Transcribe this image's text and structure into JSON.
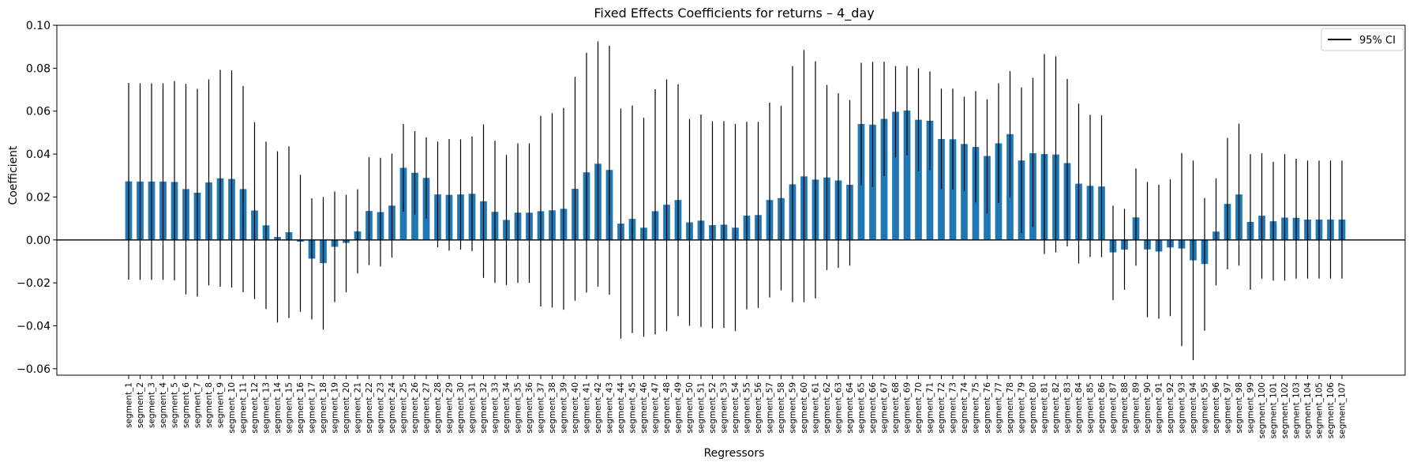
{
  "chart_data": {
    "type": "bar",
    "title": "Fixed Effects Coefficients for returns – 4_day",
    "xlabel": "Regressors",
    "ylabel": "Coefficient",
    "ylim": [
      -0.063,
      0.1
    ],
    "yticks": [
      -0.06,
      -0.04,
      -0.02,
      0.0,
      0.02,
      0.04,
      0.06,
      0.08,
      0.1
    ],
    "ytick_labels": [
      "−0.06",
      "−0.04",
      "−0.02",
      "0.00",
      "0.02",
      "0.04",
      "0.06",
      "0.08",
      "0.10"
    ],
    "legend": {
      "position": "top-right",
      "entries": [
        "95% CI"
      ]
    },
    "grid": false,
    "bar_color": "#1f77b4",
    "errorbar_color": "#000000",
    "categories": [
      "segment_1",
      "segment_2",
      "segment_3",
      "segment_4",
      "segment_5",
      "segment_6",
      "segment_7",
      "segment_8",
      "segment_9",
      "segment_10",
      "segment_11",
      "segment_12",
      "segment_13",
      "segment_14",
      "segment_15",
      "segment_16",
      "segment_17",
      "segment_18",
      "segment_19",
      "segment_20",
      "segment_21",
      "segment_22",
      "segment_23",
      "segment_24",
      "segment_25",
      "segment_26",
      "segment_27",
      "segment_28",
      "segment_29",
      "segment_30",
      "segment_31",
      "segment_32",
      "segment_33",
      "segment_34",
      "segment_35",
      "segment_36",
      "segment_37",
      "segment_38",
      "segment_39",
      "segment_40",
      "segment_41",
      "segment_42",
      "segment_43",
      "segment_44",
      "segment_45",
      "segment_46",
      "segment_47",
      "segment_48",
      "segment_49",
      "segment_50",
      "segment_51",
      "segment_52",
      "segment_53",
      "segment_54",
      "segment_55",
      "segment_56",
      "segment_57",
      "segment_58",
      "segment_59",
      "segment_60",
      "segment_61",
      "segment_62",
      "segment_63",
      "segment_64",
      "segment_65",
      "segment_66",
      "segment_67",
      "segment_68",
      "segment_69",
      "segment_70",
      "segment_71",
      "segment_72",
      "segment_73",
      "segment_74",
      "segment_75",
      "segment_76",
      "segment_77",
      "segment_78",
      "segment_79",
      "segment_80",
      "segment_81",
      "segment_82",
      "segment_83",
      "segment_84",
      "segment_85",
      "segment_86",
      "segment_87",
      "segment_88",
      "segment_89",
      "segment_90",
      "segment_91",
      "segment_92",
      "segment_93",
      "segment_94",
      "segment_95",
      "segment_96",
      "segment_97",
      "segment_98",
      "segment_99",
      "segment_100",
      "segment_101",
      "segment_102",
      "segment_103",
      "segment_104",
      "segment_105",
      "segment_106",
      "segment_107"
    ],
    "values": [
      0.0273,
      0.0272,
      0.0272,
      0.0272,
      0.027,
      0.0237,
      0.022,
      0.0268,
      0.0287,
      0.0284,
      0.0237,
      0.0137,
      0.0068,
      0.0014,
      0.0036,
      -0.0008,
      -0.0087,
      -0.0108,
      -0.0032,
      -0.0014,
      0.004,
      0.0135,
      0.013,
      0.016,
      0.0336,
      0.0313,
      0.0289,
      0.0212,
      0.021,
      0.0212,
      0.0215,
      0.018,
      0.0131,
      0.0093,
      0.0127,
      0.0127,
      0.0134,
      0.0138,
      0.0145,
      0.0238,
      0.0315,
      0.0355,
      0.0326,
      0.0076,
      0.0098,
      0.0057,
      0.0134,
      0.0164,
      0.0186,
      0.0082,
      0.009,
      0.0069,
      0.0071,
      0.0057,
      0.0113,
      0.0116,
      0.0186,
      0.0195,
      0.0259,
      0.0296,
      0.0281,
      0.0291,
      0.0277,
      0.0257,
      0.054,
      0.0537,
      0.0564,
      0.0597,
      0.0603,
      0.056,
      0.0555,
      0.047,
      0.0469,
      0.0447,
      0.0433,
      0.0391,
      0.045,
      0.0493,
      0.037,
      0.0404,
      0.04,
      0.0398,
      0.0358,
      0.0262,
      0.0252,
      0.0249,
      -0.0058,
      -0.0045,
      0.0105,
      -0.0044,
      -0.0054,
      -0.0035,
      -0.004,
      -0.0095,
      -0.0112,
      0.0039,
      0.0168,
      0.0212,
      0.0084,
      0.0113,
      0.0087,
      0.0104,
      0.0103,
      0.0095,
      0.0095,
      0.0095,
      0.0095
    ],
    "ci_lower": [
      -0.0185,
      -0.0186,
      -0.0186,
      -0.0186,
      -0.0188,
      -0.0254,
      -0.0264,
      -0.0212,
      -0.0218,
      -0.0222,
      -0.0243,
      -0.0275,
      -0.0322,
      -0.0385,
      -0.0364,
      -0.0335,
      -0.037,
      -0.0418,
      -0.029,
      -0.0244,
      -0.0156,
      -0.0117,
      -0.0123,
      -0.0082,
      0.0132,
      0.0118,
      0.01,
      -0.0034,
      -0.005,
      -0.0045,
      -0.0052,
      -0.0177,
      -0.02,
      -0.021,
      -0.02,
      -0.02,
      -0.031,
      -0.0315,
      -0.0325,
      -0.0283,
      -0.0245,
      -0.0218,
      -0.0255,
      -0.046,
      -0.0434,
      -0.0451,
      -0.044,
      -0.0425,
      -0.0355,
      -0.04,
      -0.0405,
      -0.0412,
      -0.041,
      -0.0425,
      -0.0323,
      -0.0317,
      -0.0268,
      -0.0235,
      -0.029,
      -0.029,
      -0.0272,
      -0.014,
      -0.013,
      -0.012,
      0.0255,
      0.0247,
      0.0297,
      0.0385,
      0.0395,
      0.032,
      0.0325,
      0.0237,
      0.0234,
      0.0227,
      0.0175,
      0.0124,
      0.0172,
      0.0198,
      0.0032,
      0.006,
      -0.0065,
      -0.0058,
      -0.003,
      -0.011,
      -0.008,
      -0.008,
      -0.028,
      -0.0232,
      -0.012,
      -0.036,
      -0.0367,
      -0.0355,
      -0.0495,
      -0.056,
      -0.0423,
      -0.0212,
      -0.0137,
      -0.012,
      -0.0232,
      -0.018,
      -0.019,
      -0.019,
      -0.018,
      -0.018,
      -0.018,
      -0.018,
      -0.018
    ],
    "ci_upper": [
      0.0731,
      0.073,
      0.073,
      0.073,
      0.074,
      0.0727,
      0.0704,
      0.0748,
      0.0792,
      0.079,
      0.0717,
      0.0549,
      0.0458,
      0.0413,
      0.0436,
      0.0303,
      0.0194,
      0.02,
      0.0226,
      0.021,
      0.0236,
      0.0385,
      0.0383,
      0.0402,
      0.054,
      0.0507,
      0.0478,
      0.0458,
      0.047,
      0.0469,
      0.0482,
      0.0538,
      0.0462,
      0.0396,
      0.045,
      0.045,
      0.0578,
      0.059,
      0.0615,
      0.076,
      0.0872,
      0.0925,
      0.0905,
      0.0612,
      0.0626,
      0.0569,
      0.0702,
      0.0748,
      0.0726,
      0.0564,
      0.0584,
      0.0553,
      0.0553,
      0.054,
      0.055,
      0.055,
      0.064,
      0.0625,
      0.081,
      0.0885,
      0.0832,
      0.0722,
      0.0683,
      0.0652,
      0.0825,
      0.083,
      0.083,
      0.081,
      0.081,
      0.08,
      0.0785,
      0.0705,
      0.0705,
      0.0667,
      0.0693,
      0.0655,
      0.073,
      0.0786,
      0.071,
      0.0756,
      0.0866,
      0.0855,
      0.075,
      0.0635,
      0.0583,
      0.058,
      0.016,
      0.0145,
      0.0333,
      0.027,
      0.0257,
      0.0283,
      0.0405,
      0.037,
      0.0195,
      0.0287,
      0.0475,
      0.0542,
      0.04,
      0.0404,
      0.0364,
      0.04,
      0.0378,
      0.037,
      0.037,
      0.037,
      0.037
    ]
  }
}
